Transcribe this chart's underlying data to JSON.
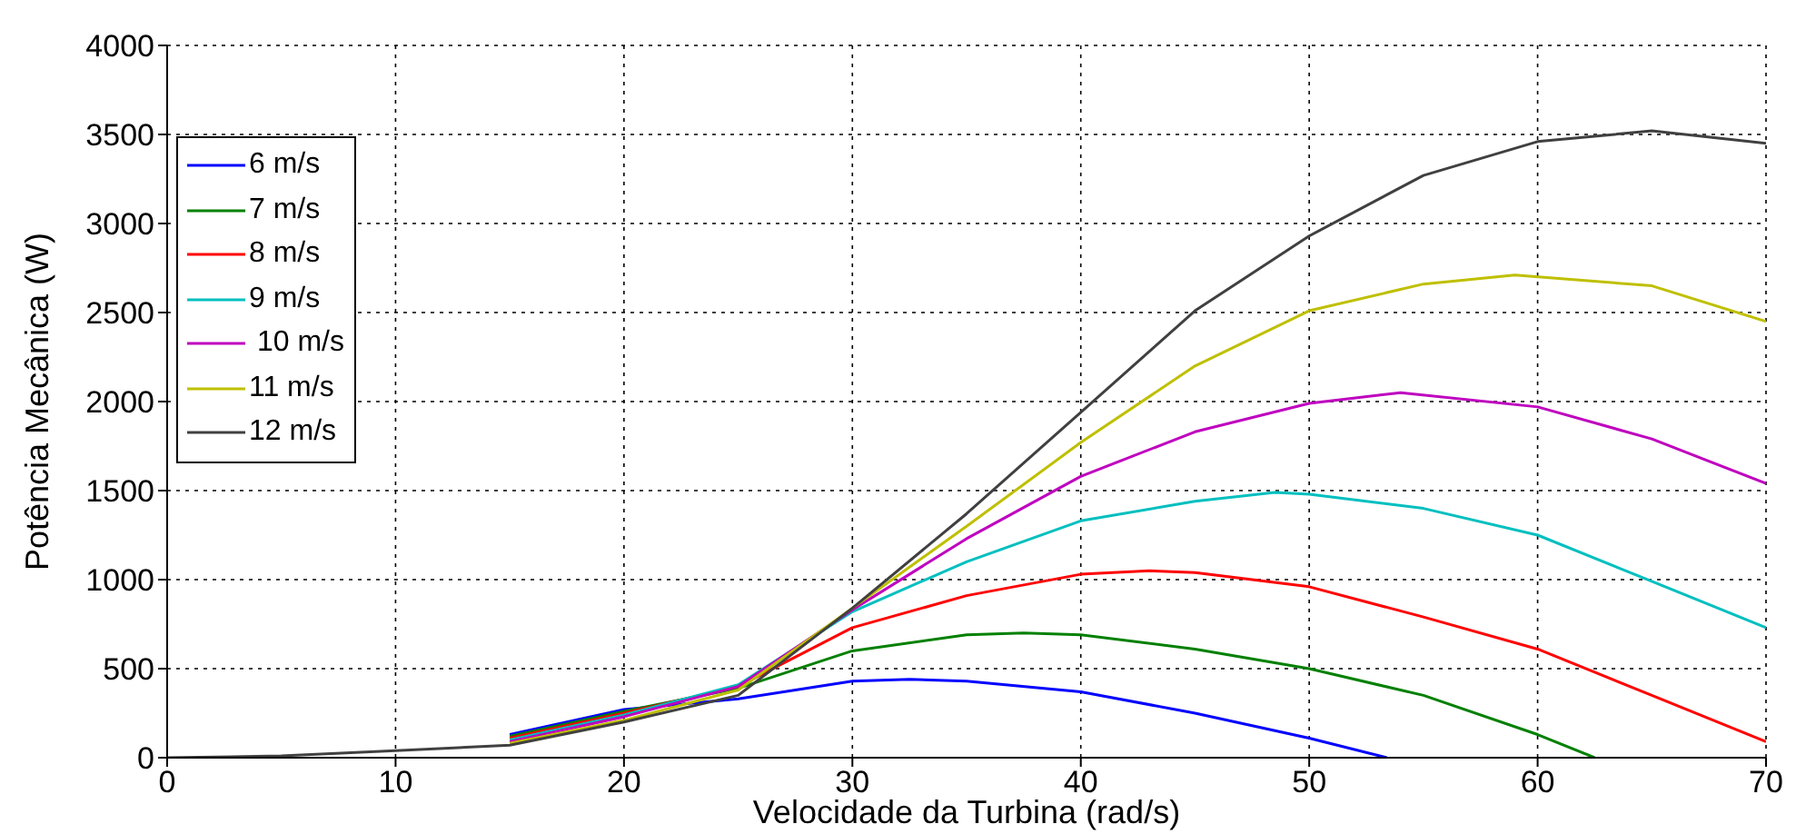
{
  "chart_data": {
    "type": "line",
    "xlabel": "Velocidade da Turbina (rad/s)",
    "ylabel": "Potência Mecânica (W)",
    "xlim": [
      0,
      70
    ],
    "xticks": [
      0,
      10,
      20,
      30,
      40,
      50,
      60,
      70
    ],
    "ylim": [
      0,
      4000
    ],
    "yticks": [
      0,
      500,
      1000,
      1500,
      2000,
      2500,
      3000,
      3500,
      4000
    ],
    "grid": true,
    "legend": "top left",
    "marker": "none",
    "line_style": "solid",
    "series": [
      {
        "name": "6 m/s",
        "color": "#0000ff",
        "x": [
          15,
          20,
          25,
          30,
          32.5,
          35,
          40,
          45,
          50,
          53.4
        ],
        "values": [
          130,
          270,
          330,
          430,
          440,
          430,
          370,
          250,
          110,
          0
        ]
      },
      {
        "name": "7 m/s",
        "color": "#008000",
        "x": [
          15,
          20,
          25,
          30,
          35,
          37.5,
          40,
          45,
          50,
          55,
          60,
          62.5
        ],
        "values": [
          120,
          260,
          390,
          600,
          690,
          700,
          690,
          610,
          500,
          350,
          130,
          0
        ]
      },
      {
        "name": "8 m/s",
        "color": "#ff0000",
        "x": [
          15,
          20,
          25,
          30,
          35,
          40,
          43,
          45,
          50,
          55,
          60,
          65,
          70
        ],
        "values": [
          110,
          250,
          400,
          730,
          910,
          1030,
          1050,
          1040,
          960,
          790,
          610,
          350,
          90
        ]
      },
      {
        "name": "9 m/s",
        "color": "#00bfbf",
        "x": [
          15,
          20,
          25,
          30,
          35,
          40,
          45,
          48.5,
          50,
          55,
          60,
          65,
          70
        ],
        "values": [
          100,
          240,
          410,
          820,
          1100,
          1330,
          1440,
          1490,
          1480,
          1400,
          1250,
          990,
          730
        ]
      },
      {
        "name": " 10 m/s",
        "color": "#bf00bf",
        "x": [
          15,
          20,
          25,
          30,
          35,
          40,
          45,
          50,
          54,
          60,
          65,
          70
        ],
        "values": [
          90,
          230,
          400,
          830,
          1230,
          1580,
          1830,
          1990,
          2050,
          1970,
          1790,
          1540
        ]
      },
      {
        "name": "11 m/s",
        "color": "#bfbf00",
        "x": [
          15,
          20,
          25,
          30,
          35,
          40,
          45,
          50,
          55,
          59,
          65,
          70
        ],
        "values": [
          80,
          210,
          380,
          840,
          1300,
          1770,
          2200,
          2510,
          2660,
          2710,
          2650,
          2450
        ]
      },
      {
        "name": "12 m/s",
        "color": "#404040",
        "x": [
          0,
          5,
          10,
          15,
          20,
          25,
          30,
          35,
          40,
          45,
          50,
          55,
          60,
          65,
          70
        ],
        "values": [
          0,
          10,
          40,
          70,
          200,
          350,
          840,
          1370,
          1940,
          2510,
          2930,
          3270,
          3460,
          3520,
          3450
        ]
      }
    ]
  }
}
